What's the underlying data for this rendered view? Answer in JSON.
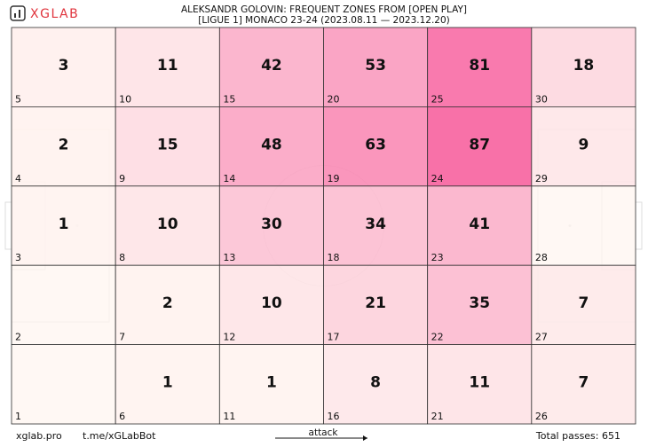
{
  "header": {
    "logo": "XGLAB"
  },
  "chart_data": {
    "type": "heatmap",
    "title": "ALEKSANDR GOLOVIN: FREQUENT ZONES FROM [OPEN PLAY]",
    "subtitle": "[LIGUE 1] MONACO 23-24 (2023.08.11 — 2023.12.20)",
    "values": [
      [
        3,
        11,
        42,
        53,
        81,
        18
      ],
      [
        2,
        15,
        48,
        63,
        87,
        9
      ],
      [
        1,
        10,
        30,
        34,
        41,
        null
      ],
      [
        null,
        2,
        10,
        21,
        35,
        7
      ],
      [
        null,
        1,
        1,
        8,
        11,
        7
      ]
    ],
    "zone_labels": [
      [
        5,
        10,
        15,
        20,
        25,
        30
      ],
      [
        4,
        9,
        14,
        19,
        24,
        29
      ],
      [
        3,
        8,
        13,
        18,
        23,
        28
      ],
      [
        2,
        7,
        12,
        17,
        22,
        27
      ],
      [
        1,
        6,
        11,
        16,
        21,
        26
      ]
    ],
    "colors": [
      "#fff5f0",
      "#f7629f"
    ],
    "direction_label": "attack"
  },
  "footer": {
    "site": "xglab.pro",
    "bot": "t.me/xGLabBot",
    "total": "Total passes: 651"
  }
}
